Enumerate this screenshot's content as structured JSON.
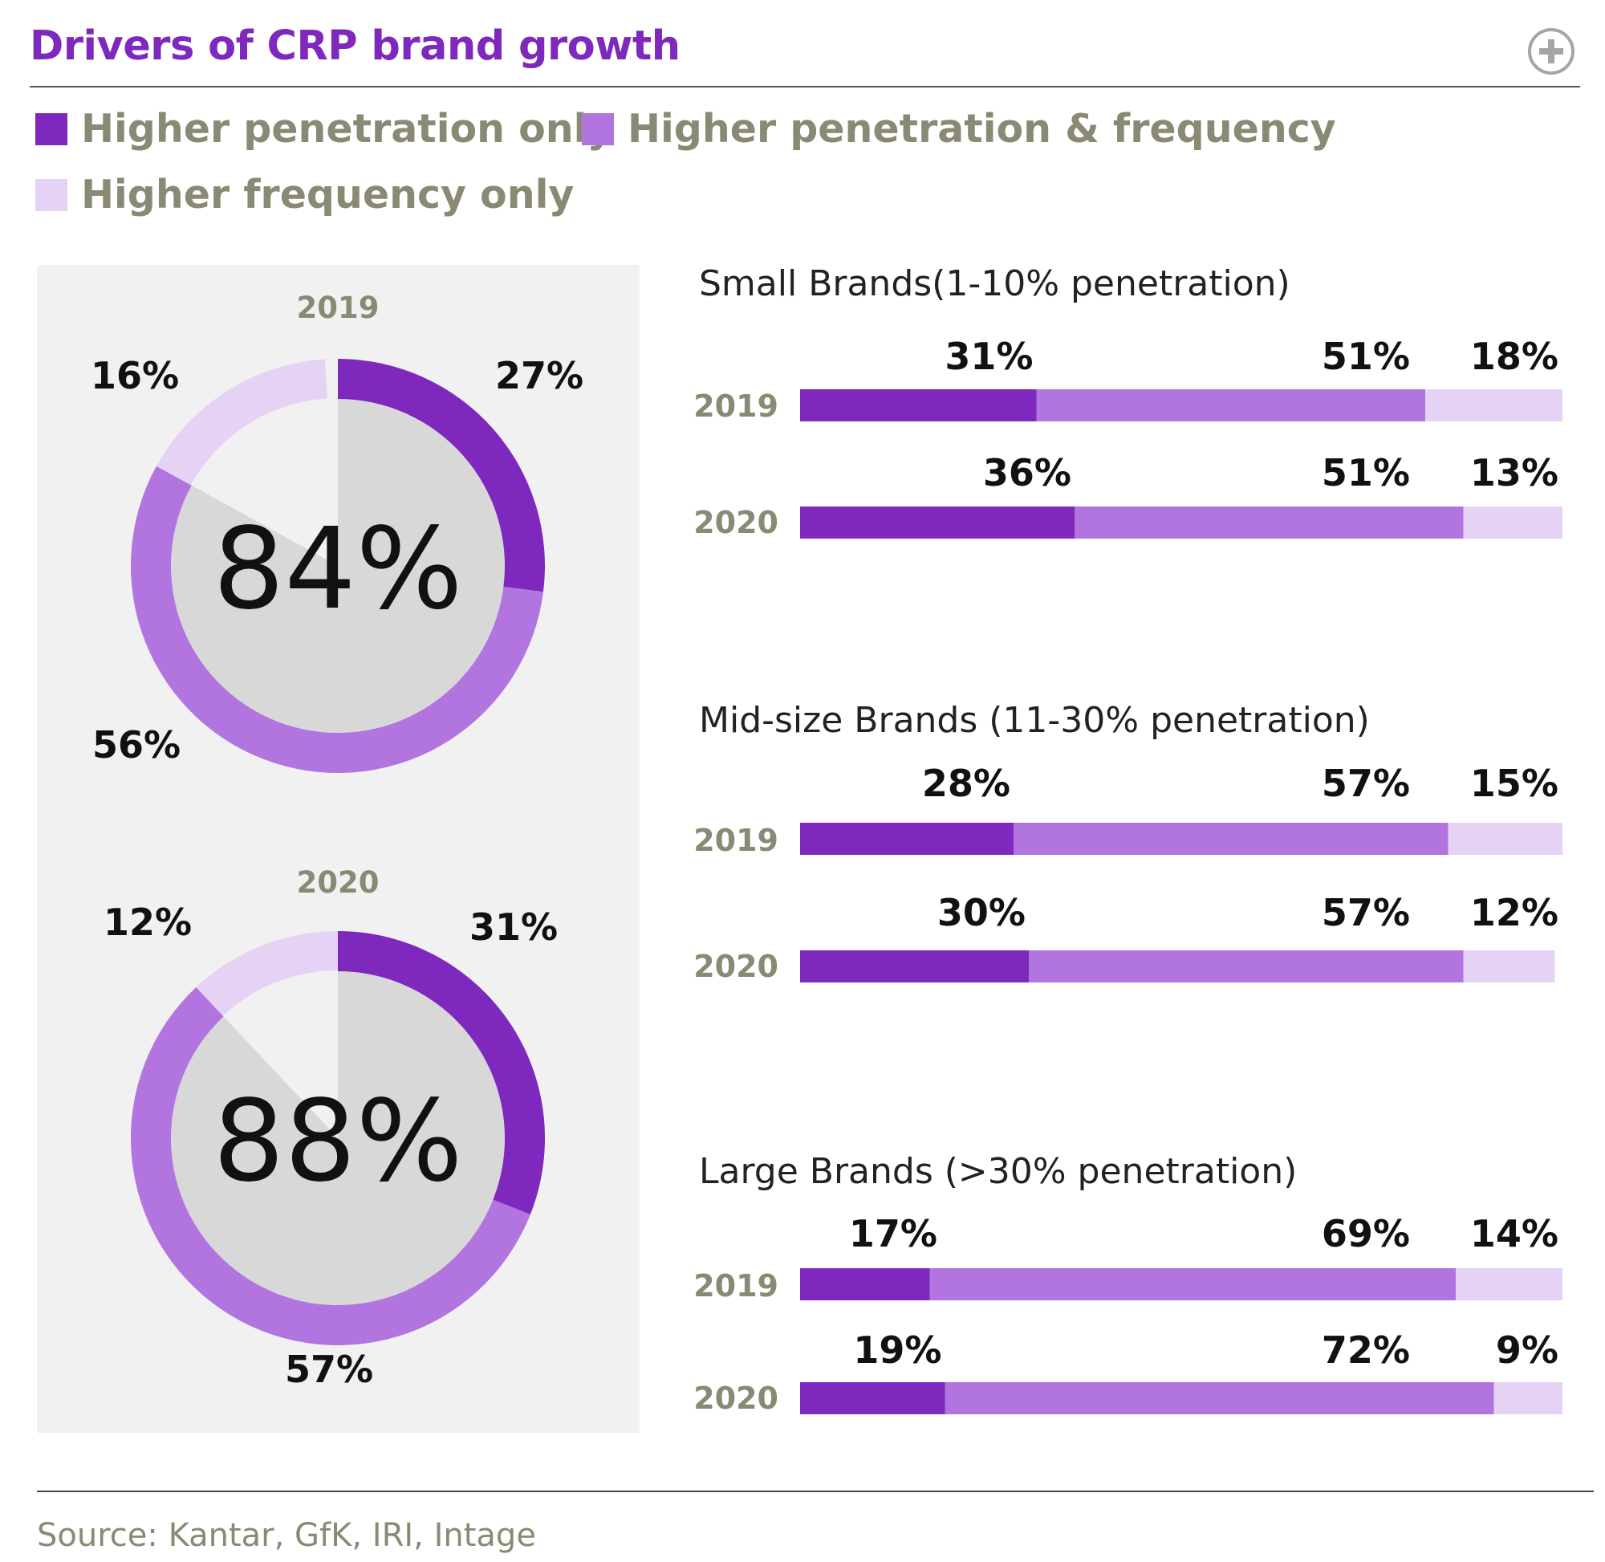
{
  "title": "Drivers of CRP brand growth",
  "colors": {
    "title": "#7e28bd",
    "penetration_only": "#7e28bd",
    "penetration_frequency": "#b275e0",
    "frequency_only": "#e6d2f4",
    "donut_inner": "#d8d8d8",
    "panel": "#f1f1f1",
    "muted_text": "#8a8a74"
  },
  "legend": [
    {
      "label": "Higher penetration only",
      "color": "#7e28bd"
    },
    {
      "label": "Higher penetration & frequency",
      "color": "#b275e0"
    },
    {
      "label": "Higher frequency only",
      "color": "#e6d2f4"
    }
  ],
  "expand_icon": "plus-circle-icon",
  "chart_data": [
    {
      "type": "pie",
      "title": "2019",
      "center_label": "84%",
      "categories": [
        "Higher penetration only",
        "Higher penetration & frequency",
        "Higher frequency only"
      ],
      "values": [
        27,
        56,
        16
      ],
      "labels": [
        "27%",
        "56%",
        "16%"
      ]
    },
    {
      "type": "pie",
      "title": "2020",
      "center_label": "88%",
      "categories": [
        "Higher penetration only",
        "Higher penetration & frequency",
        "Higher frequency only"
      ],
      "values": [
        31,
        57,
        12
      ],
      "labels": [
        "31%",
        "57%",
        "12%"
      ]
    },
    {
      "type": "bar",
      "orientation": "horizontal-stacked",
      "title": "Small Brands(1-10% penetration)",
      "categories": [
        "2019",
        "2020"
      ],
      "series": [
        {
          "name": "Higher penetration only",
          "values": [
            31,
            36
          ]
        },
        {
          "name": "Higher penetration & frequency",
          "values": [
            51,
            51
          ]
        },
        {
          "name": "Higher frequency only",
          "values": [
            18,
            13
          ]
        }
      ]
    },
    {
      "type": "bar",
      "orientation": "horizontal-stacked",
      "title": "Mid-size Brands (11-30% penetration)",
      "categories": [
        "2019",
        "2020"
      ],
      "series": [
        {
          "name": "Higher penetration only",
          "values": [
            28,
            30
          ]
        },
        {
          "name": "Higher penetration & frequency",
          "values": [
            57,
            57
          ]
        },
        {
          "name": "Higher frequency only",
          "values": [
            15,
            12
          ]
        }
      ]
    },
    {
      "type": "bar",
      "orientation": "horizontal-stacked",
      "title": "Large Brands (>30% penetration)",
      "categories": [
        "2019",
        "2020"
      ],
      "series": [
        {
          "name": "Higher penetration only",
          "values": [
            17,
            19
          ]
        },
        {
          "name": "Higher penetration & frequency",
          "values": [
            69,
            72
          ]
        },
        {
          "name": "Higher frequency only",
          "values": [
            14,
            9
          ]
        }
      ]
    }
  ],
  "source": "Source: Kantar, GfK, IRI, Intage"
}
